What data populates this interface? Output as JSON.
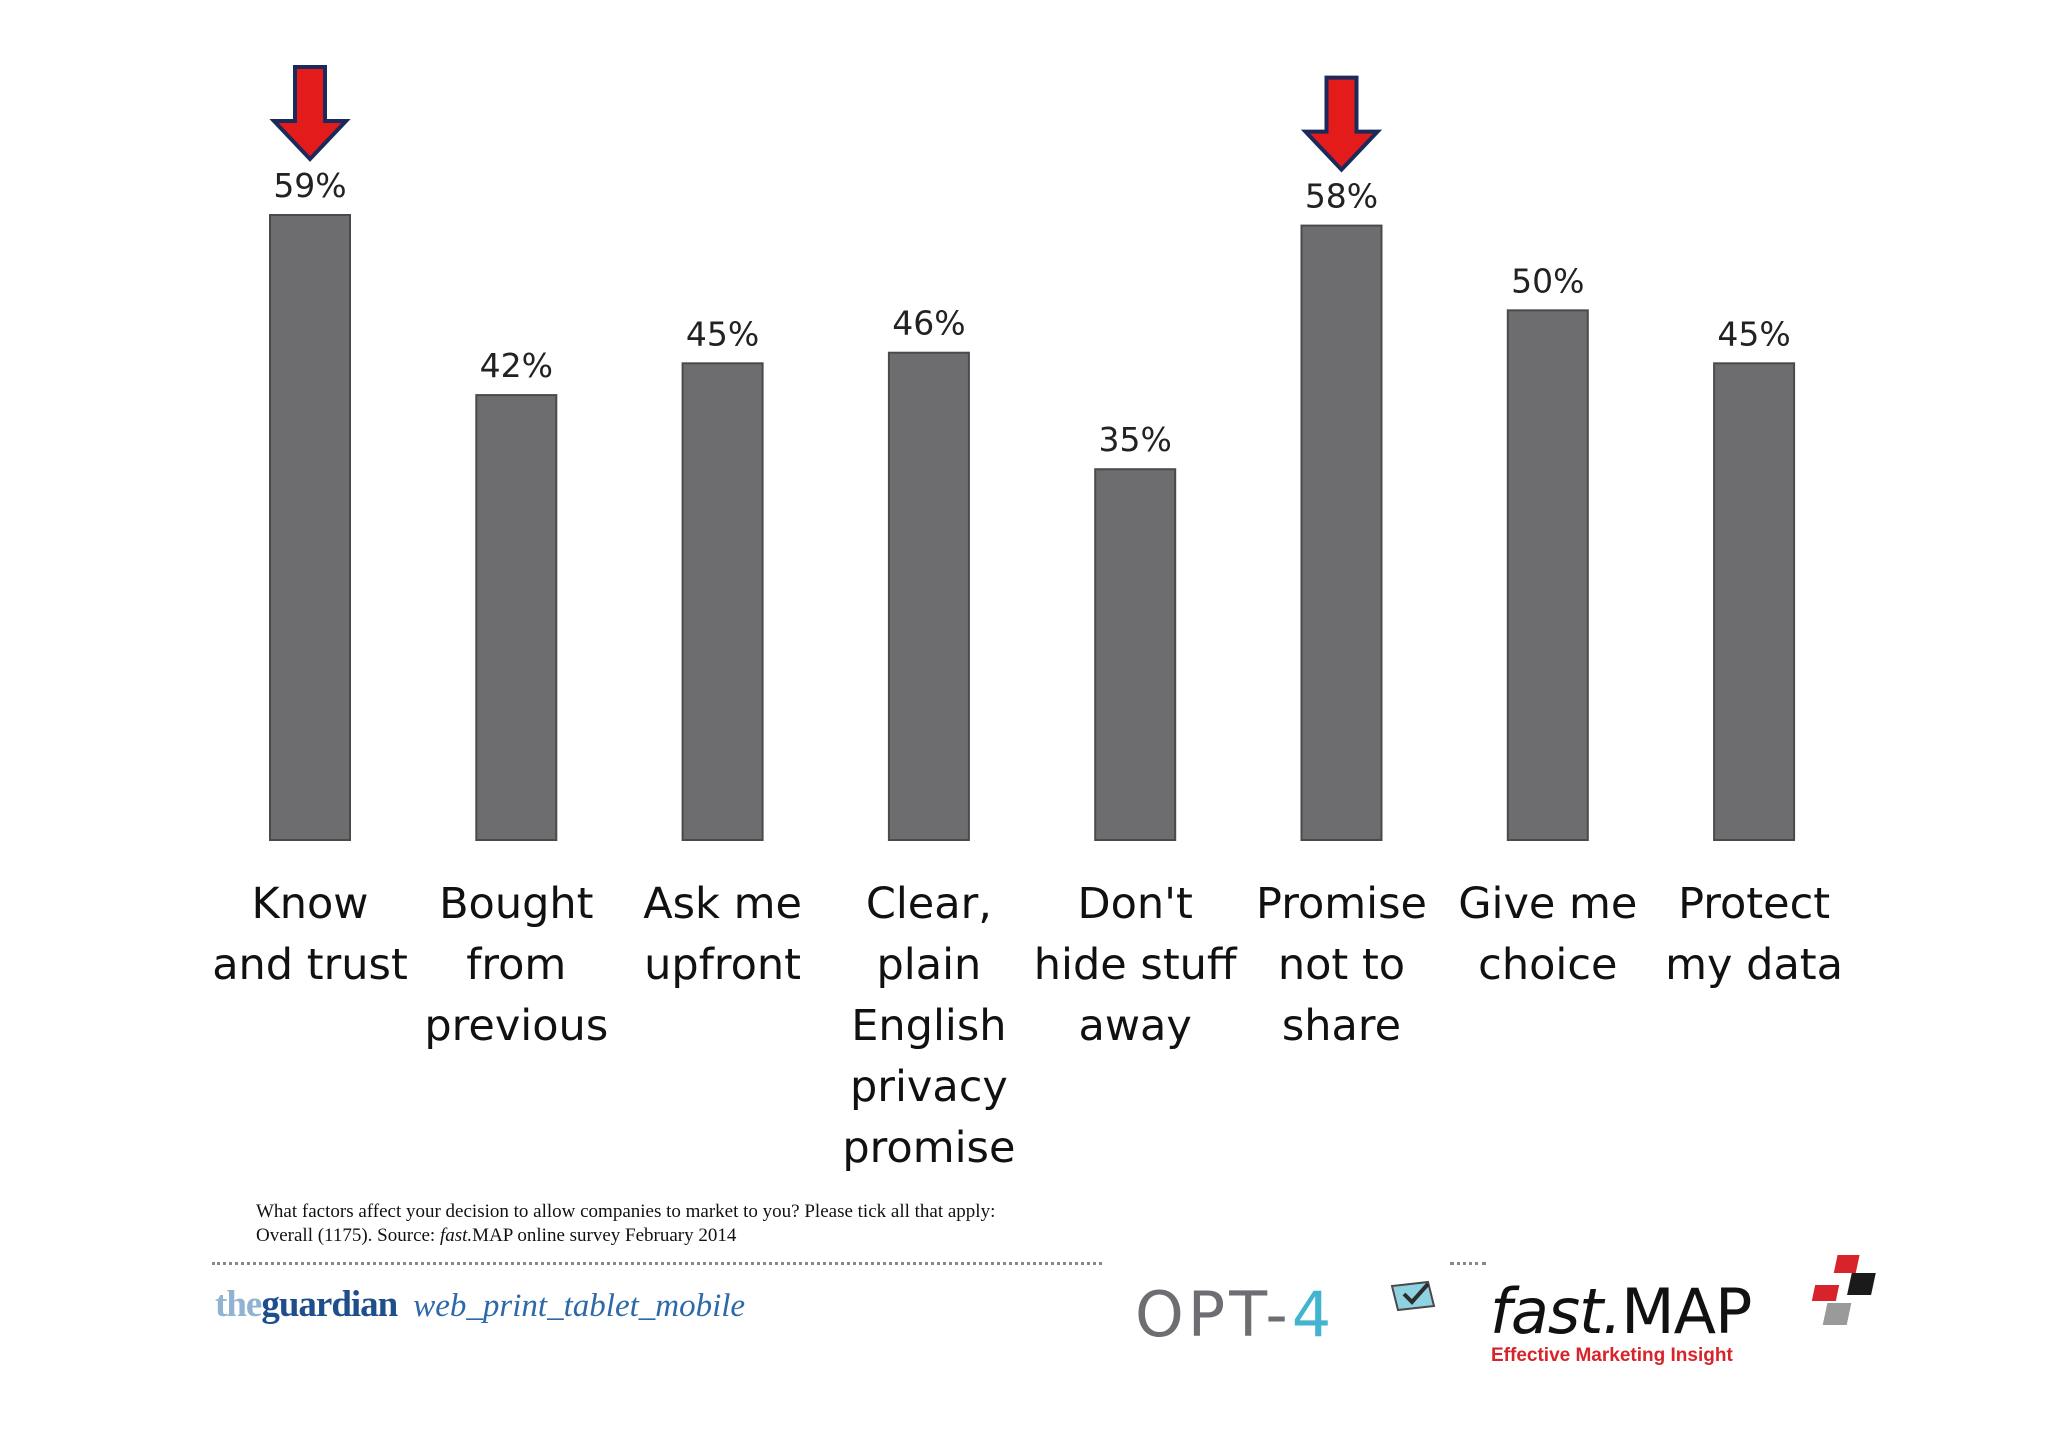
{
  "chart_data": {
    "type": "bar",
    "title": "",
    "xlabel": "",
    "ylabel": "",
    "ylim": [
      0,
      60
    ],
    "grid": false,
    "legend": "none",
    "categories": [
      [
        "Know",
        "and trust"
      ],
      [
        "Bought",
        "from",
        "previous"
      ],
      [
        "Ask me",
        "upfront"
      ],
      [
        "Clear,",
        "plain",
        "English",
        "privacy",
        "promise"
      ],
      [
        "Don't",
        "hide stuff",
        "away"
      ],
      [
        "Promise",
        "not to",
        "share"
      ],
      [
        "Give me",
        "choice"
      ],
      [
        "Protect",
        "my data"
      ]
    ],
    "values": [
      59,
      42,
      45,
      46,
      35,
      58,
      50,
      45
    ],
    "data_labels": [
      "59%",
      "42%",
      "45%",
      "46%",
      "35%",
      "58%",
      "50%",
      "45%"
    ],
    "highlighted": [
      "Know and trust",
      "Promise not to share"
    ],
    "bar_color": "#6d6d6f",
    "arrow_color": "#e31b1b"
  },
  "footnote": {
    "line1": "What factors affect your decision to allow companies to market to you? Please tick all that apply:",
    "line2_prefix": "Overall (1175). Source:  ",
    "line2_brand": "fast.",
    "line2_suffix": "MAP online survey February 2014"
  },
  "logos": {
    "guardian_the": "the",
    "guardian_name": "guardian",
    "guardian_tagline": "web_print_tablet_mobile",
    "opt4_prefix": "OPT-",
    "opt4_number": "4",
    "fastmap_fast": "fast.",
    "fastmap_map": "MAP",
    "fastmap_tagline": "Effective Marketing Insight",
    "colors": {
      "guardian_light": "#8fb3d1",
      "guardian_dark": "#1f4e8c",
      "opt4_gray": "#6d6e71",
      "opt4_blue": "#42b4cf",
      "fastmap_red": "#d8232a"
    }
  }
}
